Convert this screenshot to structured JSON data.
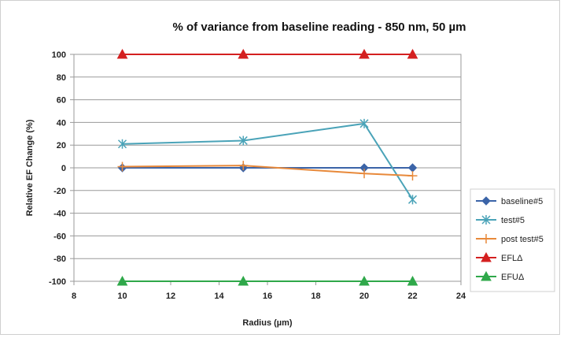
{
  "chart_data": {
    "type": "line",
    "title": "% of variance from baseline reading - 850 nm, 50 µm",
    "xlabel": "Radius (µm)",
    "ylabel": "Relative EF Change (%)",
    "xlim": [
      8,
      24
    ],
    "ylim": [
      -100,
      100
    ],
    "xticks": [
      8,
      10,
      12,
      14,
      16,
      18,
      20,
      22,
      24
    ],
    "yticks": [
      100,
      80,
      60,
      40,
      20,
      0,
      -20,
      -40,
      -60,
      -80,
      -100
    ],
    "grid": "horizontal",
    "legend_position": "right",
    "x": [
      10,
      15,
      20,
      22
    ],
    "series": [
      {
        "name": "baseline#5",
        "values": [
          0,
          0,
          0,
          0
        ],
        "color": "#3b64a8",
        "marker": "diamond"
      },
      {
        "name": "test#5",
        "values": [
          21,
          24,
          39,
          -28
        ],
        "color": "#4aa3b8",
        "marker": "star"
      },
      {
        "name": "post test#5",
        "values": [
          1,
          2,
          -5,
          -7
        ],
        "color": "#e8893a",
        "marker": "plus"
      },
      {
        "name": "EFLΔ",
        "values": [
          100,
          100,
          100,
          100
        ],
        "color": "#d42020",
        "marker": "triangle"
      },
      {
        "name": "EFUΔ",
        "values": [
          -100,
          -100,
          -100,
          -100
        ],
        "color": "#2fa84a",
        "marker": "triangle"
      }
    ]
  }
}
